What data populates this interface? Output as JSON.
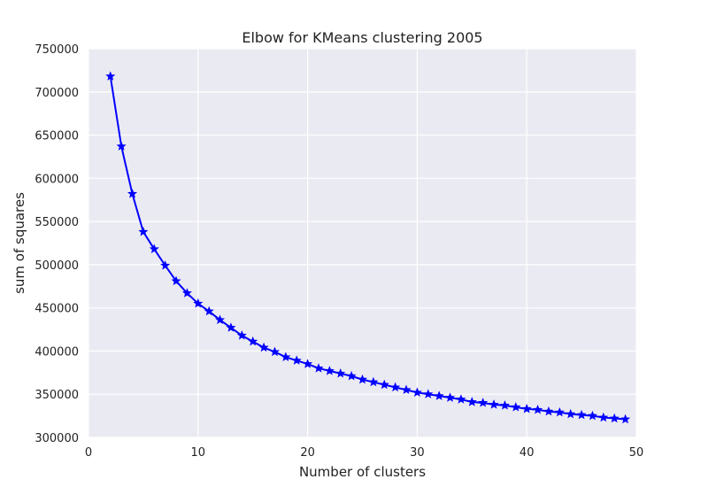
{
  "chart_data": {
    "type": "line",
    "title": "Elbow for KMeans clustering 2005",
    "xlabel": "Number of clusters",
    "ylabel": "sum of squares",
    "xlim": [
      0,
      50
    ],
    "ylim": [
      300000,
      750000
    ],
    "x_ticks": [
      0,
      10,
      20,
      30,
      40,
      50
    ],
    "y_ticks": [
      300000,
      350000,
      400000,
      450000,
      500000,
      550000,
      600000,
      650000,
      700000,
      750000
    ],
    "x_tick_labels": [
      "0",
      "10",
      "20",
      "30",
      "40",
      "50"
    ],
    "y_tick_labels": [
      "300000",
      "350000",
      "400000",
      "450000",
      "500000",
      "550000",
      "600000",
      "650000",
      "700000",
      "750000"
    ],
    "grid": true,
    "marker": "star",
    "colors": {
      "line": "#0000ff",
      "plot_background": "#eaeaf2",
      "grid": "#ffffff",
      "text": "#222222"
    },
    "x": [
      2,
      3,
      4,
      5,
      6,
      7,
      8,
      9,
      10,
      11,
      12,
      13,
      14,
      15,
      16,
      17,
      18,
      19,
      20,
      21,
      22,
      23,
      24,
      25,
      26,
      27,
      28,
      29,
      30,
      31,
      32,
      33,
      34,
      35,
      36,
      37,
      38,
      39,
      40,
      41,
      42,
      43,
      44,
      45,
      46,
      47,
      48,
      49
    ],
    "y": [
      718000,
      637000,
      582000,
      538000,
      518000,
      499000,
      481000,
      467000,
      455000,
      446000,
      436000,
      427000,
      418000,
      411000,
      404000,
      399000,
      393000,
      389000,
      385000,
      380000,
      377000,
      374000,
      371000,
      367000,
      364000,
      361000,
      358000,
      355000,
      352000,
      350000,
      348000,
      346000,
      344000,
      341000,
      340000,
      338000,
      337000,
      335000,
      333000,
      332000,
      330000,
      329000,
      327000,
      326000,
      325000,
      323000,
      322000,
      321000
    ]
  }
}
